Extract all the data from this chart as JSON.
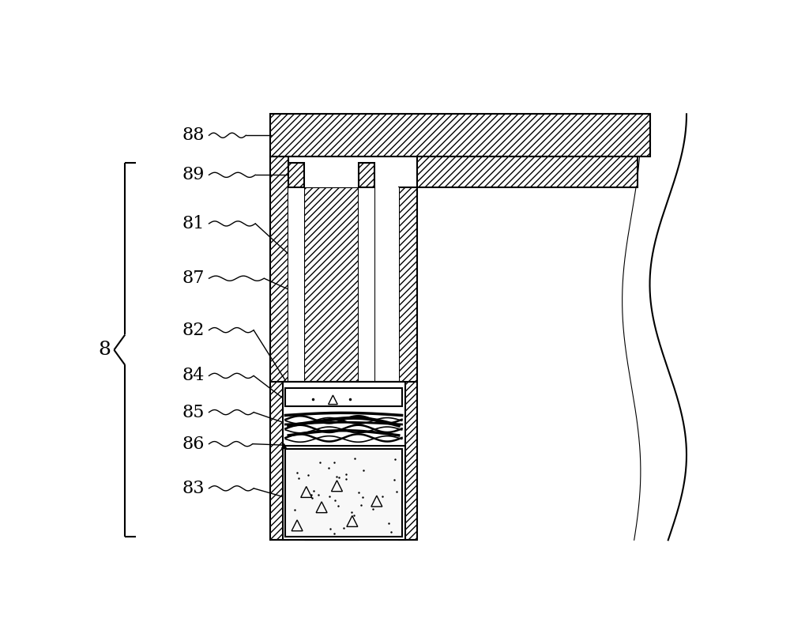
{
  "bg_color": "#ffffff",
  "line_color": "#000000",
  "lw_main": 1.5,
  "lw_thin": 0.8,
  "label_fontsize": 16,
  "fig_width": 10.0,
  "fig_height": 8.11
}
